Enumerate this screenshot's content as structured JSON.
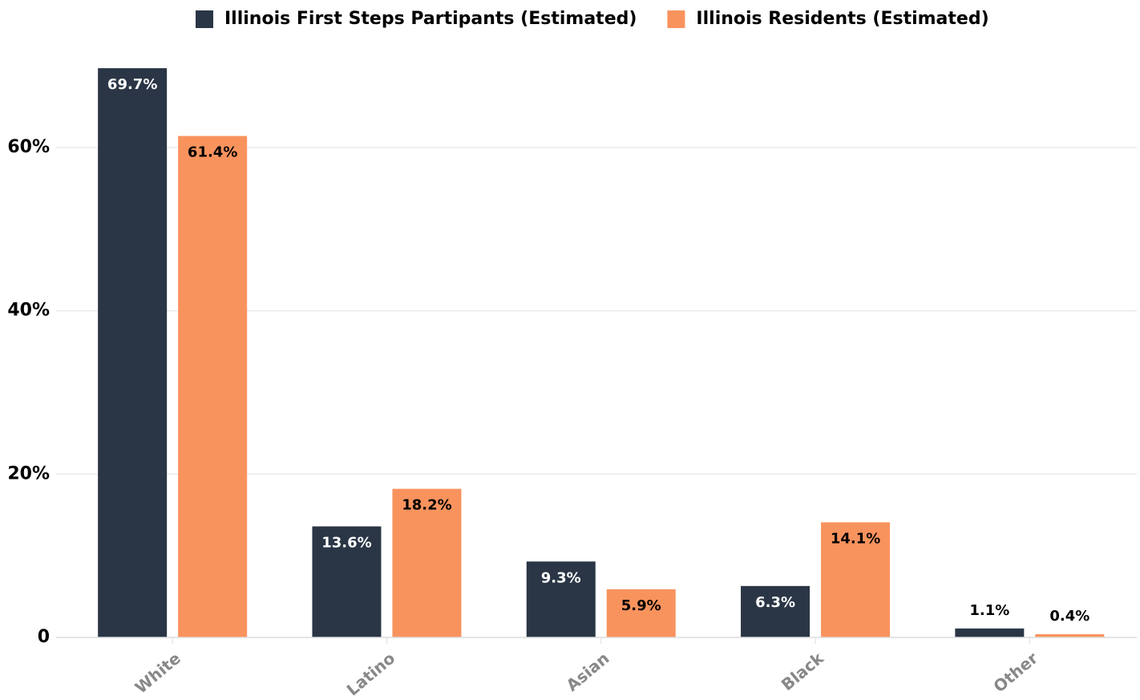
{
  "chart_data": {
    "type": "bar",
    "categories": [
      "White",
      "Latino",
      "Asian",
      "Black",
      "Other"
    ],
    "series": [
      {
        "name": "Illinois First Steps Partipants (Estimated)",
        "color": "#2a3646",
        "values": [
          69.7,
          13.6,
          9.3,
          6.3,
          1.1
        ],
        "value_labels": [
          "69.7%",
          "13.6%",
          "9.3%",
          "6.3%",
          "1.1%"
        ]
      },
      {
        "name": "Illinois Residents (Estimated)",
        "color": "#f9935e",
        "values": [
          61.4,
          18.2,
          5.9,
          14.1,
          0.4
        ],
        "value_labels": [
          "61.4%",
          "18.2%",
          "5.9%",
          "14.1%",
          "0.4%"
        ]
      }
    ],
    "ylim": [
      0,
      70
    ],
    "yticks": [
      0,
      {
        "value": 20,
        "label": "20%"
      },
      {
        "value": 40,
        "label": "40%"
      },
      {
        "value": 60,
        "label": "60%"
      }
    ],
    "grid": true,
    "legend": "top"
  }
}
